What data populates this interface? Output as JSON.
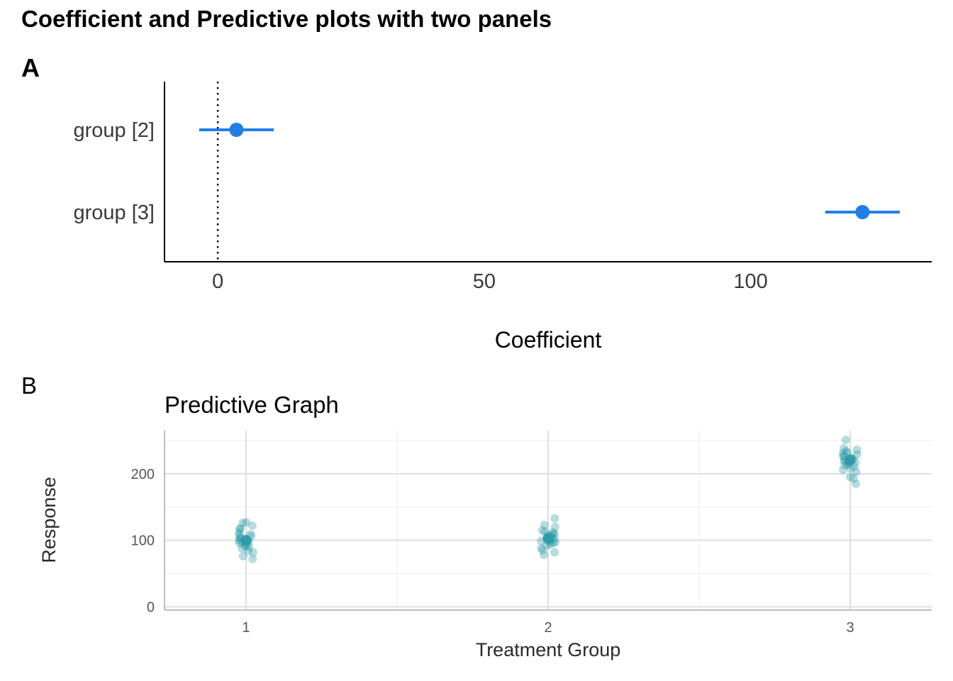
{
  "figure": {
    "title": "Coefficient and Predictive plots with two panels"
  },
  "chart_data": [
    {
      "type": "scatter",
      "panel_tag": "A",
      "title": "",
      "xlabel": "Coefficient",
      "ylabel": "",
      "xlim": [
        -10,
        134
      ],
      "xticks": [
        "0",
        "50",
        "100"
      ],
      "reference_line_x": 0,
      "terms": [
        {
          "label": "group [2]",
          "estimate": 3.5,
          "conf_low": -3.5,
          "conf_high": 10.5
        },
        {
          "label": "group [3]",
          "estimate": 121,
          "conf_low": 114,
          "conf_high": 128
        }
      ],
      "color": "#1f7ee8",
      "grid": false
    },
    {
      "type": "scatter",
      "panel_tag": "B",
      "title": "Predictive Graph",
      "xlabel": "Treatment Group",
      "ylabel": "Response",
      "ylim": [
        -5,
        265
      ],
      "xticks": [
        "1",
        "2",
        "3"
      ],
      "yticks": [
        "0",
        "100",
        "200"
      ],
      "grid": true,
      "color": "#2a9aa6",
      "groups": [
        {
          "x": 1,
          "mean": 100,
          "values": [
            84,
            91,
            96,
            103,
            108,
            112,
            118,
            126,
            93,
            99,
            106,
            72,
            82,
            122,
            109,
            95,
            101,
            88,
            117,
            100,
            96,
            104,
            76,
            127,
            90
          ]
        },
        {
          "x": 2,
          "mean": 103,
          "values": [
            78,
            92,
            98,
            104,
            110,
            120,
            133,
            96,
            101,
            107,
            113,
            85,
            88,
            99,
            115,
            123,
            104,
            94,
            109,
            102,
            97,
            82,
            112,
            106,
            100
          ]
        },
        {
          "x": 3,
          "mean": 221,
          "values": [
            185,
            193,
            208,
            214,
            220,
            226,
            231,
            238,
            251,
            218,
            224,
            211,
            203,
            229,
            236,
            217,
            222,
            195,
            232,
            213,
            227,
            206,
            219,
            234,
            215
          ]
        }
      ]
    }
  ]
}
